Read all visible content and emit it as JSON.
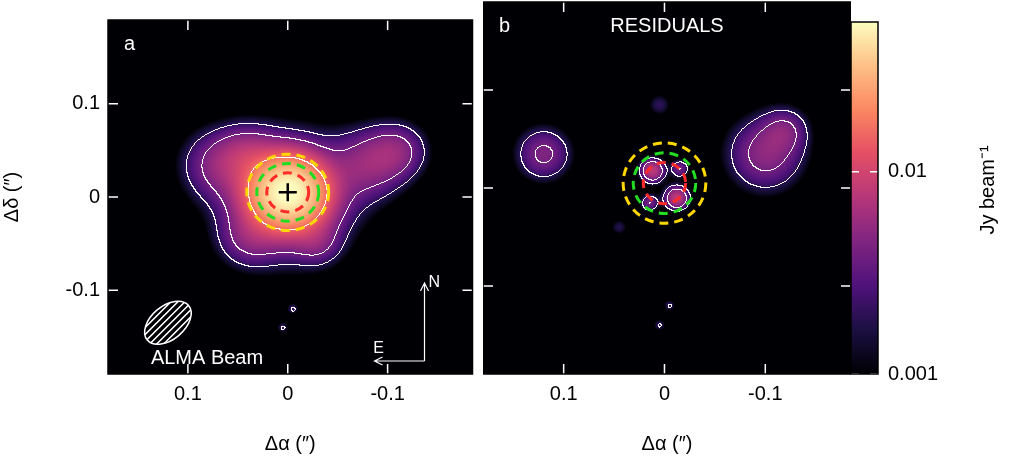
{
  "chart_data": [
    {
      "type": "heatmap",
      "letter": "a",
      "x_label": "Δα (″)",
      "y_label": "Δδ (″)",
      "xlim": [
        0.18,
        -0.185
      ],
      "ylim": [
        -0.19,
        0.19
      ],
      "xticks": [
        0.1,
        0,
        -0.1
      ],
      "yticks": [
        -0.1,
        0,
        0.1
      ],
      "emission": [
        {
          "x": 0,
          "y": 0.005,
          "size": 0.022,
          "peak": 0.05
        },
        {
          "x": 0,
          "y": 0,
          "size": 0.04,
          "peak": 0.008
        },
        {
          "x": 0.07,
          "y": 0.035,
          "size": 0.025,
          "peak": 0.004
        },
        {
          "x": 0.04,
          "y": 0.045,
          "size": 0.02,
          "peak": 0.004
        },
        {
          "x": -0.08,
          "y": 0.035,
          "size": 0.025,
          "peak": 0.0045
        },
        {
          "x": -0.11,
          "y": 0.05,
          "size": 0.02,
          "peak": 0.004
        },
        {
          "x": 0.04,
          "y": -0.045,
          "size": 0.02,
          "peak": 0.003
        },
        {
          "x": -0.03,
          "y": -0.05,
          "size": 0.015,
          "peak": 0.0025
        },
        {
          "x": -0.005,
          "y": -0.12,
          "size": 0.004,
          "peak": 0.0022
        },
        {
          "x": 0.005,
          "y": -0.14,
          "size": 0.004,
          "peak": 0.0022
        }
      ],
      "contours": [
        0.002,
        0.004,
        0.016
      ],
      "circles": [
        {
          "x": 0,
          "y": 0.005,
          "radius": 0.021,
          "color": "#ff2a2a",
          "line_style": "dashed"
        },
        {
          "x": 0,
          "y": 0.005,
          "radius": 0.031,
          "color": "#22dd22",
          "line_style": "dashed"
        },
        {
          "x": 0,
          "y": 0.005,
          "radius": 0.041,
          "color": "#ffd700",
          "line_style": "dashed"
        }
      ],
      "markers": [
        {
          "x": 0,
          "y": 0.005,
          "marker": "plus",
          "color": "#000000"
        }
      ],
      "beam": {
        "label": "ALMA Beam",
        "x": 0.12,
        "y": -0.135,
        "major": 0.027,
        "minor": 0.018
      },
      "compass": {
        "north": "N",
        "east": "E"
      }
    },
    {
      "type": "heatmap",
      "letter": "b",
      "title": "RESIDUALS",
      "x_label": "Δα (″)",
      "tick_labels": "x",
      "xlim": [
        0.18,
        -0.185
      ],
      "ylim": [
        -0.19,
        0.19
      ],
      "xticks": [
        0.1,
        0,
        -0.1
      ],
      "yticks": [
        -0.1,
        0,
        0.1
      ],
      "emission": [
        {
          "x": 0.12,
          "y": 0.035,
          "size": 0.018,
          "peak": 0.0045
        },
        {
          "x": -0.1,
          "y": 0.035,
          "size": 0.025,
          "peak": 0.005
        },
        {
          "x": -0.12,
          "y": 0.06,
          "size": 0.015,
          "peak": 0.003
        },
        {
          "x": 0.005,
          "y": 0.085,
          "size": 0.008,
          "peak": 0.002
        },
        {
          "x": 0.045,
          "y": -0.04,
          "size": 0.006,
          "peak": 0.0018
        },
        {
          "x": 0.012,
          "y": 0.018,
          "size": 0.008,
          "peak": 0.008
        },
        {
          "x": -0.012,
          "y": -0.01,
          "size": 0.008,
          "peak": 0.008
        },
        {
          "x": -0.015,
          "y": 0.02,
          "size": 0.006,
          "peak": 0.004
        },
        {
          "x": 0.015,
          "y": -0.015,
          "size": 0.006,
          "peak": 0.004
        },
        {
          "x": -0.005,
          "y": -0.12,
          "size": 0.004,
          "peak": 0.0022
        },
        {
          "x": 0.005,
          "y": -0.14,
          "size": 0.004,
          "peak": 0.0022
        }
      ],
      "contours": [
        0.002,
        0.004,
        0.016
      ],
      "circles": [
        {
          "x": 0,
          "y": 0.005,
          "radius": 0.021,
          "color": "#ff2a2a",
          "line_style": "dashed"
        },
        {
          "x": 0,
          "y": 0.005,
          "radius": 0.031,
          "color": "#22dd22",
          "line_style": "dashed"
        },
        {
          "x": 0,
          "y": 0.005,
          "radius": 0.041,
          "color": "#ffd700",
          "line_style": "dashed"
        }
      ]
    },
    {
      "type": "colorbar",
      "label": "Jy beam⁻¹",
      "log": "y",
      "ylim": [
        0.001,
        0.055
      ],
      "yticks": [
        0.001,
        0.01
      ]
    }
  ]
}
